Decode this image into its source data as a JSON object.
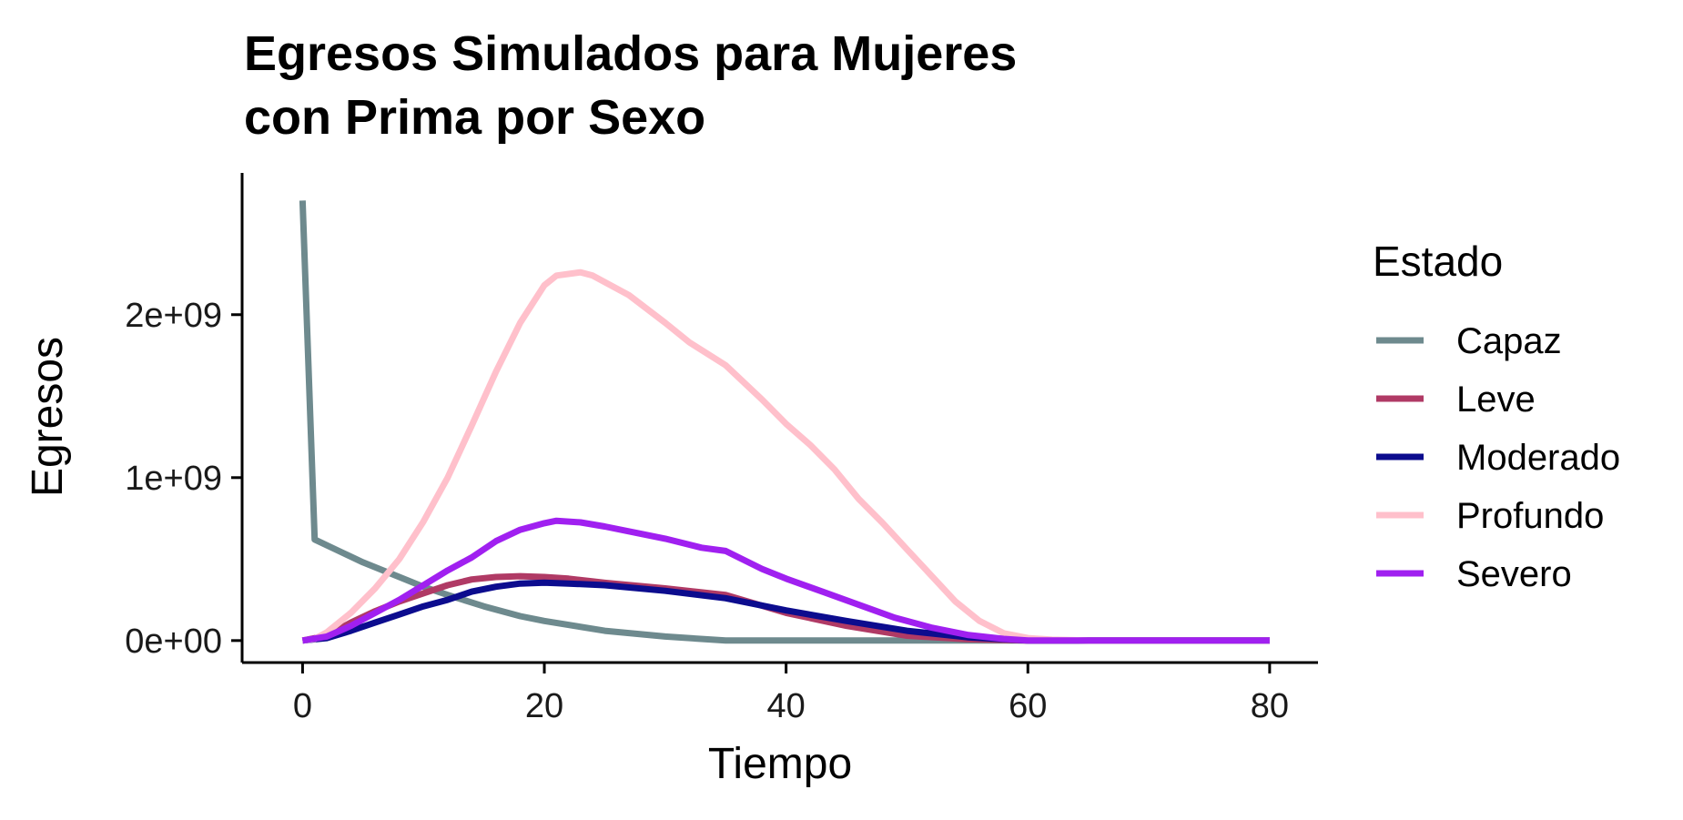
{
  "chart_data": {
    "type": "line",
    "title_lines": [
      "Egresos Simulados para Mujeres",
      "con Prima por Sexo"
    ],
    "xlabel": "Tiempo",
    "ylabel": "Egresos",
    "xlim": [
      -5,
      84
    ],
    "ylim": [
      -135000000,
      2870000000
    ],
    "x_ticks": [
      {
        "value": 0,
        "label": "0"
      },
      {
        "value": 20,
        "label": "20"
      },
      {
        "value": 40,
        "label": "40"
      },
      {
        "value": 60,
        "label": "60"
      },
      {
        "value": 80,
        "label": "80"
      }
    ],
    "y_ticks": [
      {
        "value": 0,
        "label": "0e+00"
      },
      {
        "value": 1000000000,
        "label": "1e+09"
      },
      {
        "value": 2000000000,
        "label": "2e+09"
      }
    ],
    "grid": false,
    "legend": {
      "title": "Estado",
      "position": "right"
    },
    "series": [
      {
        "name": "Capaz",
        "color": "#6e8a8e",
        "points": [
          [
            0,
            2700000000
          ],
          [
            1,
            620000000
          ],
          [
            3,
            550000000
          ],
          [
            5,
            480000000
          ],
          [
            8,
            390000000
          ],
          [
            10,
            330000000
          ],
          [
            12,
            280000000
          ],
          [
            15,
            210000000
          ],
          [
            18,
            150000000
          ],
          [
            20,
            120000000
          ],
          [
            25,
            60000000
          ],
          [
            30,
            25000000
          ],
          [
            35,
            0
          ],
          [
            40,
            0
          ],
          [
            50,
            0
          ],
          [
            60,
            0
          ],
          [
            70,
            0
          ],
          [
            80,
            0
          ]
        ]
      },
      {
        "name": "Leve",
        "color": "#b03a65",
        "points": [
          [
            0,
            0
          ],
          [
            2,
            30000000
          ],
          [
            4,
            110000000
          ],
          [
            6,
            180000000
          ],
          [
            8,
            240000000
          ],
          [
            10,
            290000000
          ],
          [
            12,
            340000000
          ],
          [
            14,
            375000000
          ],
          [
            16,
            390000000
          ],
          [
            18,
            395000000
          ],
          [
            20,
            390000000
          ],
          [
            22,
            380000000
          ],
          [
            25,
            355000000
          ],
          [
            30,
            320000000
          ],
          [
            35,
            280000000
          ],
          [
            40,
            170000000
          ],
          [
            45,
            90000000
          ],
          [
            50,
            30000000
          ],
          [
            55,
            8000000
          ],
          [
            60,
            0
          ],
          [
            70,
            0
          ],
          [
            80,
            0
          ]
        ]
      },
      {
        "name": "Moderado",
        "color": "#0c0c8e",
        "points": [
          [
            0,
            0
          ],
          [
            2,
            15000000
          ],
          [
            4,
            60000000
          ],
          [
            6,
            110000000
          ],
          [
            8,
            160000000
          ],
          [
            10,
            210000000
          ],
          [
            12,
            250000000
          ],
          [
            14,
            300000000
          ],
          [
            16,
            330000000
          ],
          [
            18,
            350000000
          ],
          [
            20,
            355000000
          ],
          [
            22,
            350000000
          ],
          [
            25,
            340000000
          ],
          [
            30,
            305000000
          ],
          [
            35,
            260000000
          ],
          [
            40,
            185000000
          ],
          [
            45,
            120000000
          ],
          [
            50,
            60000000
          ],
          [
            55,
            20000000
          ],
          [
            60,
            0
          ],
          [
            70,
            0
          ],
          [
            80,
            0
          ]
        ]
      },
      {
        "name": "Profundo",
        "color": "#ffc0cb",
        "points": [
          [
            0,
            0
          ],
          [
            1,
            10000000
          ],
          [
            2,
            50000000
          ],
          [
            4,
            170000000
          ],
          [
            6,
            320000000
          ],
          [
            8,
            500000000
          ],
          [
            10,
            730000000
          ],
          [
            12,
            1000000000
          ],
          [
            14,
            1320000000
          ],
          [
            16,
            1650000000
          ],
          [
            18,
            1950000000
          ],
          [
            20,
            2180000000
          ],
          [
            21,
            2240000000
          ],
          [
            23,
            2260000000
          ],
          [
            24,
            2240000000
          ],
          [
            27,
            2120000000
          ],
          [
            30,
            1950000000
          ],
          [
            32,
            1830000000
          ],
          [
            35,
            1690000000
          ],
          [
            38,
            1480000000
          ],
          [
            40,
            1330000000
          ],
          [
            42,
            1200000000
          ],
          [
            44,
            1050000000
          ],
          [
            46,
            870000000
          ],
          [
            48,
            720000000
          ],
          [
            50,
            560000000
          ],
          [
            52,
            400000000
          ],
          [
            54,
            240000000
          ],
          [
            56,
            120000000
          ],
          [
            58,
            45000000
          ],
          [
            60,
            15000000
          ],
          [
            62,
            5000000
          ],
          [
            65,
            0
          ],
          [
            70,
            0
          ],
          [
            80,
            0
          ]
        ]
      },
      {
        "name": "Severo",
        "color": "#a020f0",
        "points": [
          [
            0,
            0
          ],
          [
            2,
            25000000
          ],
          [
            4,
            90000000
          ],
          [
            6,
            170000000
          ],
          [
            8,
            250000000
          ],
          [
            10,
            340000000
          ],
          [
            12,
            430000000
          ],
          [
            14,
            510000000
          ],
          [
            16,
            610000000
          ],
          [
            18,
            680000000
          ],
          [
            20,
            720000000
          ],
          [
            21,
            735000000
          ],
          [
            23,
            725000000
          ],
          [
            25,
            700000000
          ],
          [
            28,
            655000000
          ],
          [
            30,
            625000000
          ],
          [
            33,
            570000000
          ],
          [
            35,
            550000000
          ],
          [
            38,
            440000000
          ],
          [
            40,
            380000000
          ],
          [
            43,
            300000000
          ],
          [
            46,
            220000000
          ],
          [
            49,
            140000000
          ],
          [
            52,
            80000000
          ],
          [
            55,
            35000000
          ],
          [
            58,
            10000000
          ],
          [
            60,
            0
          ],
          [
            70,
            0
          ],
          [
            80,
            0
          ]
        ]
      }
    ]
  }
}
